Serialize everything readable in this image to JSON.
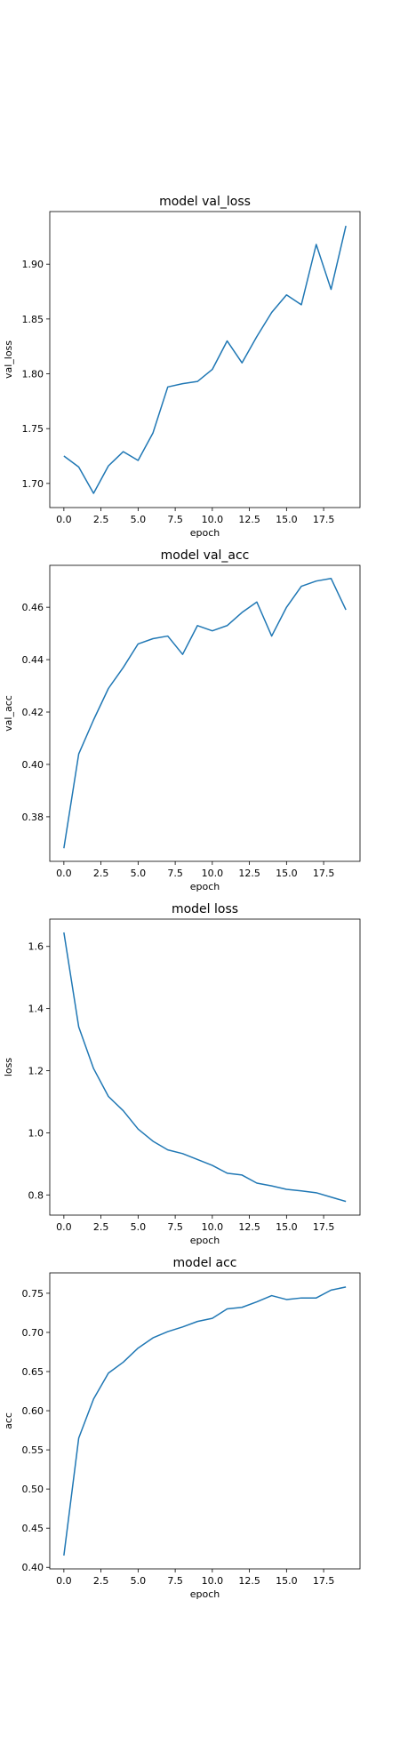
{
  "figure": {
    "background": "#ffffff",
    "line_color": "#1f77b4"
  },
  "chart_data": [
    {
      "type": "line",
      "title": "model val_loss",
      "xlabel": "epoch",
      "ylabel": "val_loss",
      "xlim": [
        -0.95,
        19.95
      ],
      "ylim": [
        1.678,
        1.948
      ],
      "xticks": [
        0.0,
        2.5,
        5.0,
        7.5,
        10.0,
        12.5,
        15.0,
        17.5
      ],
      "xtick_labels": [
        "0.0",
        "2.5",
        "5.0",
        "7.5",
        "10.0",
        "12.5",
        "15.0",
        "17.5"
      ],
      "yticks": [
        1.7,
        1.75,
        1.8,
        1.85,
        1.9
      ],
      "ytick_labels": [
        "1.70",
        "1.75",
        "1.80",
        "1.85",
        "1.90"
      ],
      "grid": false,
      "series": [
        {
          "x": [
            0,
            1,
            2,
            3,
            4,
            5,
            6,
            7,
            8,
            9,
            10,
            11,
            12,
            13,
            14,
            15,
            16,
            17,
            18,
            19
          ],
          "values": [
            1.725,
            1.715,
            1.691,
            1.716,
            1.729,
            1.721,
            1.746,
            1.788,
            1.791,
            1.793,
            1.804,
            1.83,
            1.81,
            1.834,
            1.856,
            1.872,
            1.863,
            1.918,
            1.877,
            1.935
          ]
        }
      ]
    },
    {
      "type": "line",
      "title": "model val_acc",
      "xlabel": "epoch",
      "ylabel": "val_acc",
      "xlim": [
        -0.95,
        19.95
      ],
      "ylim": [
        0.363,
        0.476
      ],
      "xticks": [
        0.0,
        2.5,
        5.0,
        7.5,
        10.0,
        12.5,
        15.0,
        17.5
      ],
      "xtick_labels": [
        "0.0",
        "2.5",
        "5.0",
        "7.5",
        "10.0",
        "12.5",
        "15.0",
        "17.5"
      ],
      "yticks": [
        0.38,
        0.4,
        0.42,
        0.44,
        0.46
      ],
      "ytick_labels": [
        "0.38",
        "0.40",
        "0.42",
        "0.44",
        "0.46"
      ],
      "grid": false,
      "series": [
        {
          "x": [
            0,
            1,
            2,
            3,
            4,
            5,
            6,
            7,
            8,
            9,
            10,
            11,
            12,
            13,
            14,
            15,
            16,
            17,
            18,
            19
          ],
          "values": [
            0.368,
            0.404,
            0.417,
            0.429,
            0.437,
            0.446,
            0.448,
            0.449,
            0.442,
            0.453,
            0.451,
            0.453,
            0.458,
            0.462,
            0.449,
            0.46,
            0.468,
            0.47,
            0.471,
            0.459
          ]
        }
      ]
    },
    {
      "type": "line",
      "title": "model loss",
      "xlabel": "epoch",
      "ylabel": "loss",
      "xlim": [
        -0.95,
        19.95
      ],
      "ylim": [
        0.735,
        1.688
      ],
      "xticks": [
        0.0,
        2.5,
        5.0,
        7.5,
        10.0,
        12.5,
        15.0,
        17.5
      ],
      "xtick_labels": [
        "0.0",
        "2.5",
        "5.0",
        "7.5",
        "10.0",
        "12.5",
        "15.0",
        "17.5"
      ],
      "yticks": [
        0.8,
        1.0,
        1.2,
        1.4,
        1.6
      ],
      "ytick_labels": [
        "0.8",
        "1.0",
        "1.2",
        "1.4",
        "1.6"
      ],
      "grid": false,
      "series": [
        {
          "x": [
            0,
            1,
            2,
            3,
            4,
            5,
            6,
            7,
            8,
            9,
            10,
            11,
            12,
            13,
            14,
            15,
            16,
            17,
            18,
            19
          ],
          "values": [
            1.645,
            1.341,
            1.207,
            1.117,
            1.071,
            1.012,
            0.973,
            0.945,
            0.933,
            0.914,
            0.895,
            0.87,
            0.864,
            0.838,
            0.829,
            0.818,
            0.813,
            0.807,
            0.793,
            0.779
          ]
        }
      ]
    },
    {
      "type": "line",
      "title": "model acc",
      "xlabel": "epoch",
      "ylabel": "acc",
      "xlim": [
        -0.95,
        19.95
      ],
      "ylim": [
        0.398,
        0.776
      ],
      "xticks": [
        0.0,
        2.5,
        5.0,
        7.5,
        10.0,
        12.5,
        15.0,
        17.5
      ],
      "xtick_labels": [
        "0.0",
        "2.5",
        "5.0",
        "7.5",
        "10.0",
        "12.5",
        "15.0",
        "17.5"
      ],
      "yticks": [
        0.4,
        0.45,
        0.5,
        0.55,
        0.6,
        0.65,
        0.7,
        0.75
      ],
      "ytick_labels": [
        "0.40",
        "0.45",
        "0.50",
        "0.55",
        "0.60",
        "0.65",
        "0.70",
        "0.75"
      ],
      "grid": false,
      "series": [
        {
          "x": [
            0,
            1,
            2,
            3,
            4,
            5,
            6,
            7,
            8,
            9,
            10,
            11,
            12,
            13,
            14,
            15,
            16,
            17,
            18,
            19
          ],
          "values": [
            0.415,
            0.565,
            0.615,
            0.648,
            0.662,
            0.68,
            0.693,
            0.701,
            0.707,
            0.714,
            0.718,
            0.73,
            0.732,
            0.739,
            0.747,
            0.742,
            0.744,
            0.744,
            0.754,
            0.758
          ]
        }
      ]
    }
  ]
}
